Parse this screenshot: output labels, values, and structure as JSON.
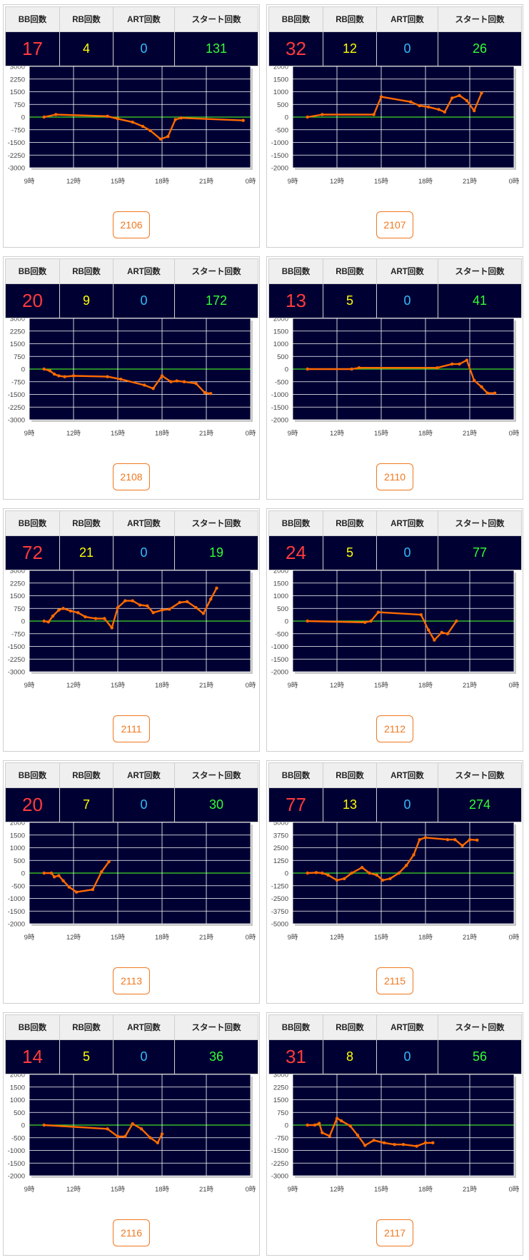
{
  "headers": {
    "bb": "BB回数",
    "rb": "RB回数",
    "art": "ART回数",
    "start": "スタート回数"
  },
  "x_ticks": [
    "9時",
    "12時",
    "15時",
    "18時",
    "21時",
    "0時"
  ],
  "machines": [
    {
      "id": "2106",
      "bb": "17",
      "rb": "4",
      "art": "0",
      "start": "131",
      "chart_data": {
        "type": "line",
        "xlabel": "",
        "ylabel": "",
        "ylim": [
          -3000,
          3000
        ],
        "yticks": [
          3000,
          2250,
          1500,
          750,
          0,
          -750,
          -1500,
          -2250,
          -3000
        ],
        "x": [
          10,
          10.8,
          14.3,
          15,
          16,
          16.7,
          17.2,
          17.9,
          18.4,
          18.9,
          19.3,
          23.5
        ],
        "values": [
          0,
          150,
          50,
          -100,
          -300,
          -550,
          -800,
          -1300,
          -1150,
          -150,
          -50,
          -200
        ]
      }
    },
    {
      "id": "2107",
      "bb": "32",
      "rb": "12",
      "art": "0",
      "start": "26",
      "chart_data": {
        "type": "line",
        "xlabel": "",
        "ylabel": "",
        "ylim": [
          -2000,
          2000
        ],
        "yticks": [
          2000,
          1500,
          1000,
          500,
          0,
          -500,
          -1000,
          -1500,
          -2000
        ],
        "x": [
          10,
          11,
          14.5,
          15,
          17,
          17.6,
          18.2,
          18.9,
          19.3,
          19.8,
          20.3,
          20.8,
          21.3,
          21.8
        ],
        "values": [
          0,
          100,
          100,
          800,
          600,
          450,
          400,
          300,
          200,
          750,
          850,
          650,
          250,
          950
        ]
      }
    },
    {
      "id": "2108",
      "bb": "20",
      "rb": "9",
      "art": "0",
      "start": "172",
      "chart_data": {
        "type": "line",
        "xlabel": "",
        "ylabel": "",
        "ylim": [
          -3000,
          3000
        ],
        "yticks": [
          3000,
          2250,
          1500,
          750,
          0,
          -750,
          -1500,
          -2250,
          -3000
        ],
        "x": [
          10,
          10.4,
          10.7,
          11,
          11.4,
          12,
          14.3,
          15.2,
          16.8,
          17.4,
          18,
          18.6,
          19,
          19.5,
          20.3,
          20.9,
          21.3
        ],
        "values": [
          0,
          -100,
          -300,
          -400,
          -450,
          -400,
          -450,
          -600,
          -950,
          -1150,
          -400,
          -750,
          -700,
          -750,
          -850,
          -1400,
          -1450
        ]
      }
    },
    {
      "id": "2110",
      "bb": "13",
      "rb": "5",
      "art": "0",
      "start": "41",
      "chart_data": {
        "type": "line",
        "xlabel": "",
        "ylabel": "",
        "ylim": [
          -2000,
          2000
        ],
        "yticks": [
          2000,
          1500,
          1000,
          500,
          0,
          -500,
          -1000,
          -1500,
          -2000
        ],
        "x": [
          10,
          13,
          13.5,
          18.8,
          19.8,
          20.3,
          20.8,
          21.3,
          21.8,
          22.2,
          22.7
        ],
        "values": [
          0,
          0,
          50,
          50,
          200,
          200,
          350,
          -450,
          -700,
          -950,
          -950
        ]
      }
    },
    {
      "id": "2111",
      "bb": "72",
      "rb": "21",
      "art": "0",
      "start": "19",
      "chart_data": {
        "type": "line",
        "xlabel": "",
        "ylabel": "",
        "ylim": [
          -3000,
          3000
        ],
        "yticks": [
          3000,
          2250,
          1500,
          750,
          0,
          -750,
          -1500,
          -2250,
          -3000
        ],
        "x": [
          10,
          10.3,
          10.6,
          11,
          11.3,
          11.8,
          12.3,
          12.8,
          13.5,
          14.1,
          14.6,
          15,
          15.5,
          16,
          16.5,
          17,
          17.4,
          18,
          18.5,
          19.2,
          19.7,
          20.3,
          20.8,
          21.3,
          21.7
        ],
        "values": [
          0,
          -50,
          300,
          650,
          750,
          600,
          500,
          250,
          150,
          150,
          -400,
          800,
          1200,
          1200,
          950,
          900,
          500,
          650,
          700,
          1100,
          1150,
          800,
          450,
          1300,
          1950
        ]
      }
    },
    {
      "id": "2112",
      "bb": "24",
      "rb": "5",
      "art": "0",
      "start": "77",
      "chart_data": {
        "type": "line",
        "xlabel": "",
        "ylabel": "",
        "ylim": [
          -2000,
          2000
        ],
        "yticks": [
          2000,
          1500,
          1000,
          500,
          0,
          -500,
          -1000,
          -1500,
          -2000
        ],
        "x": [
          10,
          13.9,
          14.3,
          14.8,
          17.7,
          18.2,
          18.6,
          19.1,
          19.5,
          20.1
        ],
        "values": [
          0,
          -50,
          0,
          350,
          250,
          -350,
          -750,
          -450,
          -500,
          0
        ]
      }
    },
    {
      "id": "2113",
      "bb": "20",
      "rb": "7",
      "art": "0",
      "start": "30",
      "chart_data": {
        "type": "line",
        "xlabel": "",
        "ylabel": "",
        "ylim": [
          -2000,
          2000
        ],
        "yticks": [
          2000,
          1500,
          1000,
          500,
          0,
          -500,
          -1000,
          -1500,
          -2000
        ],
        "x": [
          10,
          10.5,
          10.7,
          11,
          11.3,
          11.7,
          12.2,
          13.3,
          13.9,
          14.4
        ],
        "values": [
          0,
          0,
          -150,
          -100,
          -300,
          -550,
          -750,
          -650,
          50,
          450
        ]
      }
    },
    {
      "id": "2115",
      "bb": "77",
      "rb": "13",
      "art": "0",
      "start": "274",
      "chart_data": {
        "type": "line",
        "xlabel": "",
        "ylabel": "",
        "ylim": [
          -5000,
          5000
        ],
        "yticks": [
          5000,
          3750,
          2500,
          1250,
          0,
          -1250,
          -2500,
          -3750,
          -5000
        ],
        "x": [
          10,
          10.6,
          11,
          11.4,
          12,
          12.5,
          13,
          13.7,
          14.2,
          14.7,
          15.1,
          15.6,
          16.2,
          16.7,
          17.2,
          17.6,
          18,
          19.5,
          20,
          20.5,
          21,
          21.5
        ],
        "values": [
          0,
          50,
          0,
          -200,
          -700,
          -550,
          0,
          550,
          0,
          -200,
          -700,
          -550,
          0,
          750,
          1800,
          3300,
          3500,
          3300,
          3300,
          2700,
          3300,
          3250
        ]
      }
    },
    {
      "id": "2116",
      "bb": "14",
      "rb": "5",
      "art": "0",
      "start": "36",
      "chart_data": {
        "type": "line",
        "xlabel": "",
        "ylabel": "",
        "ylim": [
          -2000,
          2000
        ],
        "yticks": [
          2000,
          1500,
          1000,
          500,
          0,
          -500,
          -1000,
          -1500,
          -2000
        ],
        "x": [
          10,
          14.3,
          15,
          15.5,
          16,
          16.6,
          17.2,
          17.7,
          18
        ],
        "values": [
          0,
          -150,
          -450,
          -450,
          50,
          -150,
          -500,
          -700,
          -350
        ]
      }
    },
    {
      "id": "2117",
      "bb": "31",
      "rb": "8",
      "art": "0",
      "start": "56",
      "chart_data": {
        "type": "line",
        "xlabel": "",
        "ylabel": "",
        "ylim": [
          -3000,
          3000
        ],
        "yticks": [
          3000,
          2250,
          1500,
          750,
          0,
          -750,
          -1500,
          -2250,
          -3000
        ],
        "x": [
          10,
          10.5,
          10.8,
          11,
          11.5,
          12,
          12.3,
          12.9,
          13.4,
          13.9,
          14.5,
          15.2,
          15.9,
          16.5,
          17.4,
          18,
          18.5
        ],
        "values": [
          0,
          0,
          100,
          -450,
          -650,
          400,
          250,
          -50,
          -600,
          -1200,
          -900,
          -1050,
          -1150,
          -1150,
          -1250,
          -1050,
          -1050
        ]
      }
    }
  ]
}
